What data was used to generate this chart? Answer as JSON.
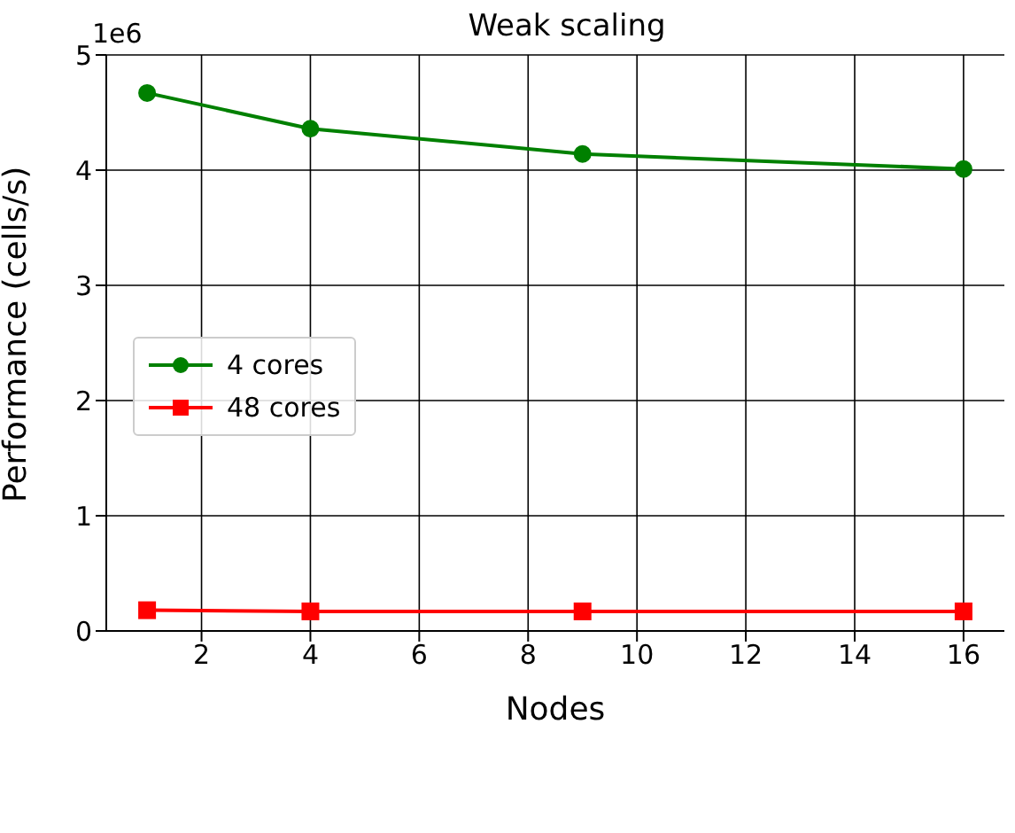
{
  "chart_data": {
    "type": "line",
    "title": "Weak scaling",
    "xlabel": "Nodes",
    "ylabel": "Performance (cells/s)",
    "annotations": [
      "1e6"
    ],
    "x": [
      1,
      4,
      9,
      16
    ],
    "series": [
      {
        "name": "4 cores",
        "color": "#008000",
        "marker": "circle",
        "values": [
          4.67,
          4.36,
          4.14,
          4.01
        ]
      },
      {
        "name": "48 cores",
        "color": "#ff0000",
        "marker": "square",
        "values": [
          0.18,
          0.17,
          0.17,
          0.17
        ]
      }
    ],
    "xlim": [
      0.25,
      16.75
    ],
    "xticks": [
      2,
      4,
      6,
      8,
      10,
      12,
      14,
      16
    ],
    "ylim": [
      0,
      5
    ],
    "yticks": [
      0,
      1,
      2,
      3,
      4,
      5
    ],
    "grid": true,
    "legend": "left",
    "line_style": "solid"
  }
}
